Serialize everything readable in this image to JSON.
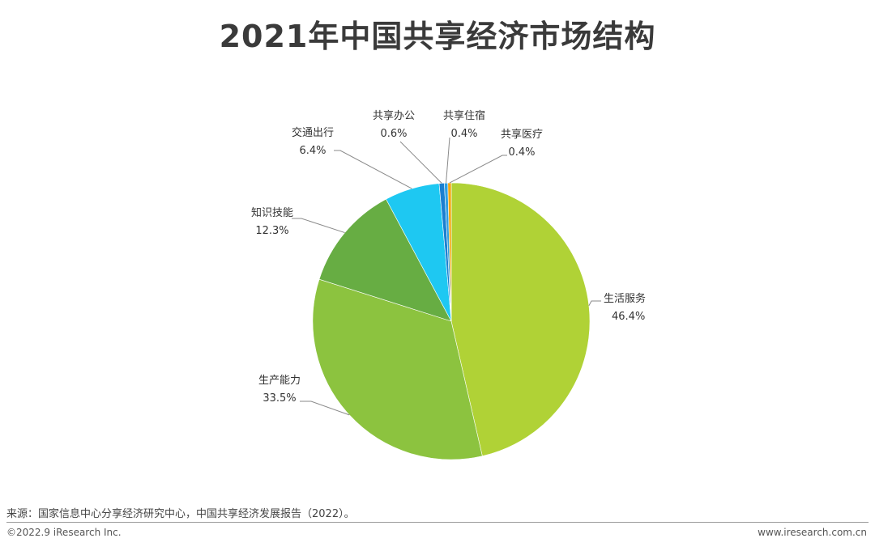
{
  "title": "2021年中国共享经济市场结构",
  "chart_data": {
    "type": "pie",
    "slices": [
      {
        "label": "生活服务",
        "value": 46.4,
        "value_label": "46.4%",
        "color": "#b0d236"
      },
      {
        "label": "生产能力",
        "value": 33.5,
        "value_label": "33.5%",
        "color": "#8cc33f"
      },
      {
        "label": "知识技能",
        "value": 12.3,
        "value_label": "12.3%",
        "color": "#67ad43"
      },
      {
        "label": "交通出行",
        "value": 6.4,
        "value_label": "6.4%",
        "color": "#1ec8f2"
      },
      {
        "label": "共享办公",
        "value": 0.6,
        "value_label": "0.6%",
        "color": "#1b7fd0"
      },
      {
        "label": "共享住宿",
        "value": 0.4,
        "value_label": "0.4%",
        "color": "#2e9fe0"
      },
      {
        "label": "共享医疗",
        "value": 0.4,
        "value_label": "0.4%",
        "color": "#f5a611"
      }
    ],
    "start": "12 o'clock",
    "direction": "clockwise"
  },
  "footer": {
    "source": "来源：国家信息中心分享经济研究中心，中国共享经济发展报告（2022）。",
    "copyright": "©2022.9 iResearch Inc.",
    "website": "www.iresearch.com.cn"
  }
}
